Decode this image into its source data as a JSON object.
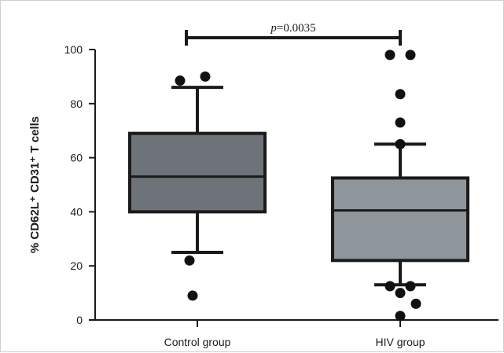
{
  "chart_data": {
    "type": "box",
    "ylabel": "% CD62L⁺ CD31⁺ T cells",
    "ylim": [
      0,
      100
    ],
    "yticks": [
      0,
      20,
      40,
      60,
      80,
      100
    ],
    "categories": [
      "Control group",
      "HIV group"
    ],
    "boxes": [
      {
        "category": "Control group",
        "whisker_low": 25,
        "q1": 40,
        "median": 53,
        "q3": 69,
        "whisker_high": 86,
        "outliers": [
          9,
          22,
          88.5,
          90
        ],
        "color": "#6d7378"
      },
      {
        "category": "HIV group",
        "whisker_low": 13,
        "q1": 22,
        "median": 40.5,
        "q3": 52.5,
        "whisker_high": 65,
        "outliers": [
          1.5,
          6,
          10,
          12.5,
          12.5,
          65,
          73,
          83.5,
          98,
          98
        ],
        "color": "#8e969c"
      }
    ],
    "significance": {
      "p_italic": "p",
      "p_text": "=0.0035",
      "between": [
        "Control group",
        "HIV group"
      ],
      "y": 100
    },
    "grid": false,
    "legend": "none"
  }
}
